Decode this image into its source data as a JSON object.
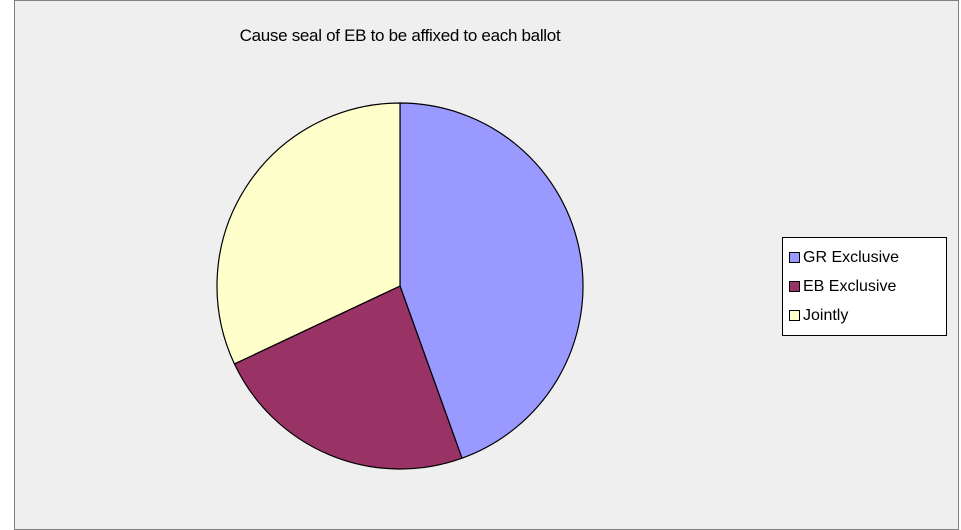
{
  "chart_data": {
    "type": "pie",
    "title": "Cause seal of EB to be affixed to each ballot",
    "categories": [
      "GR Exclusive",
      "EB Exclusive",
      "Jointly"
    ],
    "values": [
      44.5,
      23.5,
      32.0
    ],
    "colors": [
      "#9999ff",
      "#993366",
      "#ffffcc"
    ],
    "legend_position": "right"
  }
}
